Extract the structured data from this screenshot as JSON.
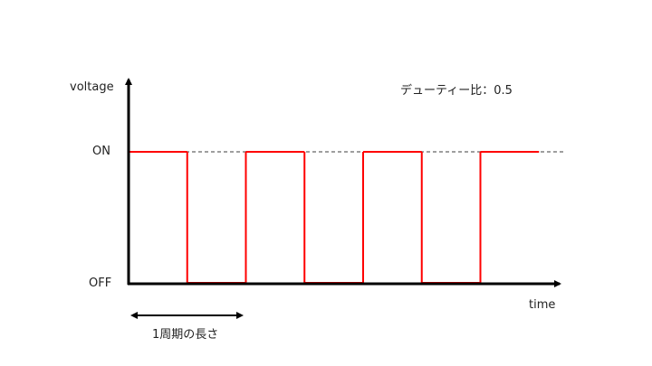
{
  "labels": {
    "y_axis": "voltage",
    "x_axis": "time",
    "on": "ON",
    "off": "OFF",
    "duty": "デューティー比：0.5",
    "period": "1周期の長さ"
  },
  "waveform": {
    "duty_ratio": 0.5,
    "cycles_shown": 3.5,
    "start_level": "ON"
  },
  "colors": {
    "signal": "#ff0000",
    "axis": "#000000",
    "reference_line": "#000000"
  }
}
